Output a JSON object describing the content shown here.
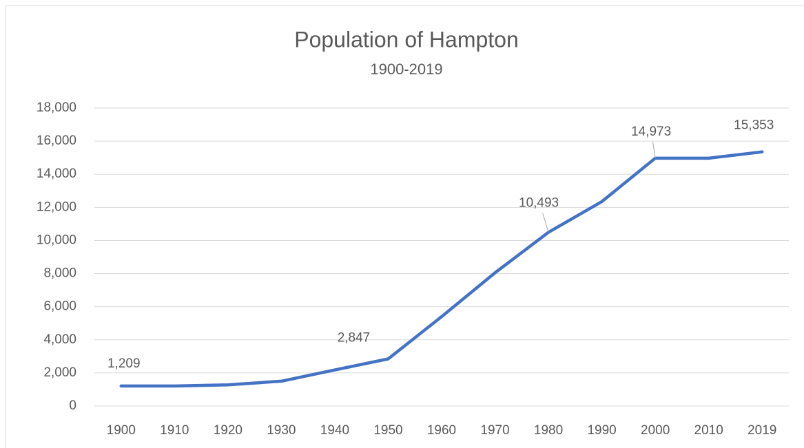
{
  "chart_data": {
    "type": "line",
    "title": "Population of Hampton",
    "subtitle": "1900-2019",
    "categories": [
      "1900",
      "1910",
      "1920",
      "1930",
      "1940",
      "1950",
      "1960",
      "1970",
      "1980",
      "1990",
      "2000",
      "2010",
      "2019"
    ],
    "series": [
      {
        "name": "Population",
        "color": "#4472c4",
        "values": [
          1209,
          1210,
          1280,
          1500,
          2180,
          2847,
          5400,
          8050,
          10493,
          12350,
          14973,
          14970,
          15353
        ],
        "value_labels": [
          "1,209",
          null,
          null,
          null,
          null,
          "2,847",
          null,
          null,
          "10,493",
          null,
          "14,973",
          null,
          "15,353"
        ]
      }
    ],
    "ylim": [
      0,
      18000
    ],
    "yticks": [
      0,
      {
        "value": 2000,
        "label": "2,000"
      },
      {
        "value": 4000,
        "label": "4,000"
      },
      {
        "value": 6000,
        "label": "6,000"
      },
      {
        "value": 8000,
        "label": "8,000"
      },
      {
        "value": 10000,
        "label": "10,000"
      },
      {
        "value": 12000,
        "label": "12,000"
      },
      {
        "value": 14000,
        "label": "14,000"
      },
      {
        "value": 16000,
        "label": "16,000"
      },
      {
        "value": 18000,
        "label": "18,000"
      }
    ],
    "grid": true
  }
}
